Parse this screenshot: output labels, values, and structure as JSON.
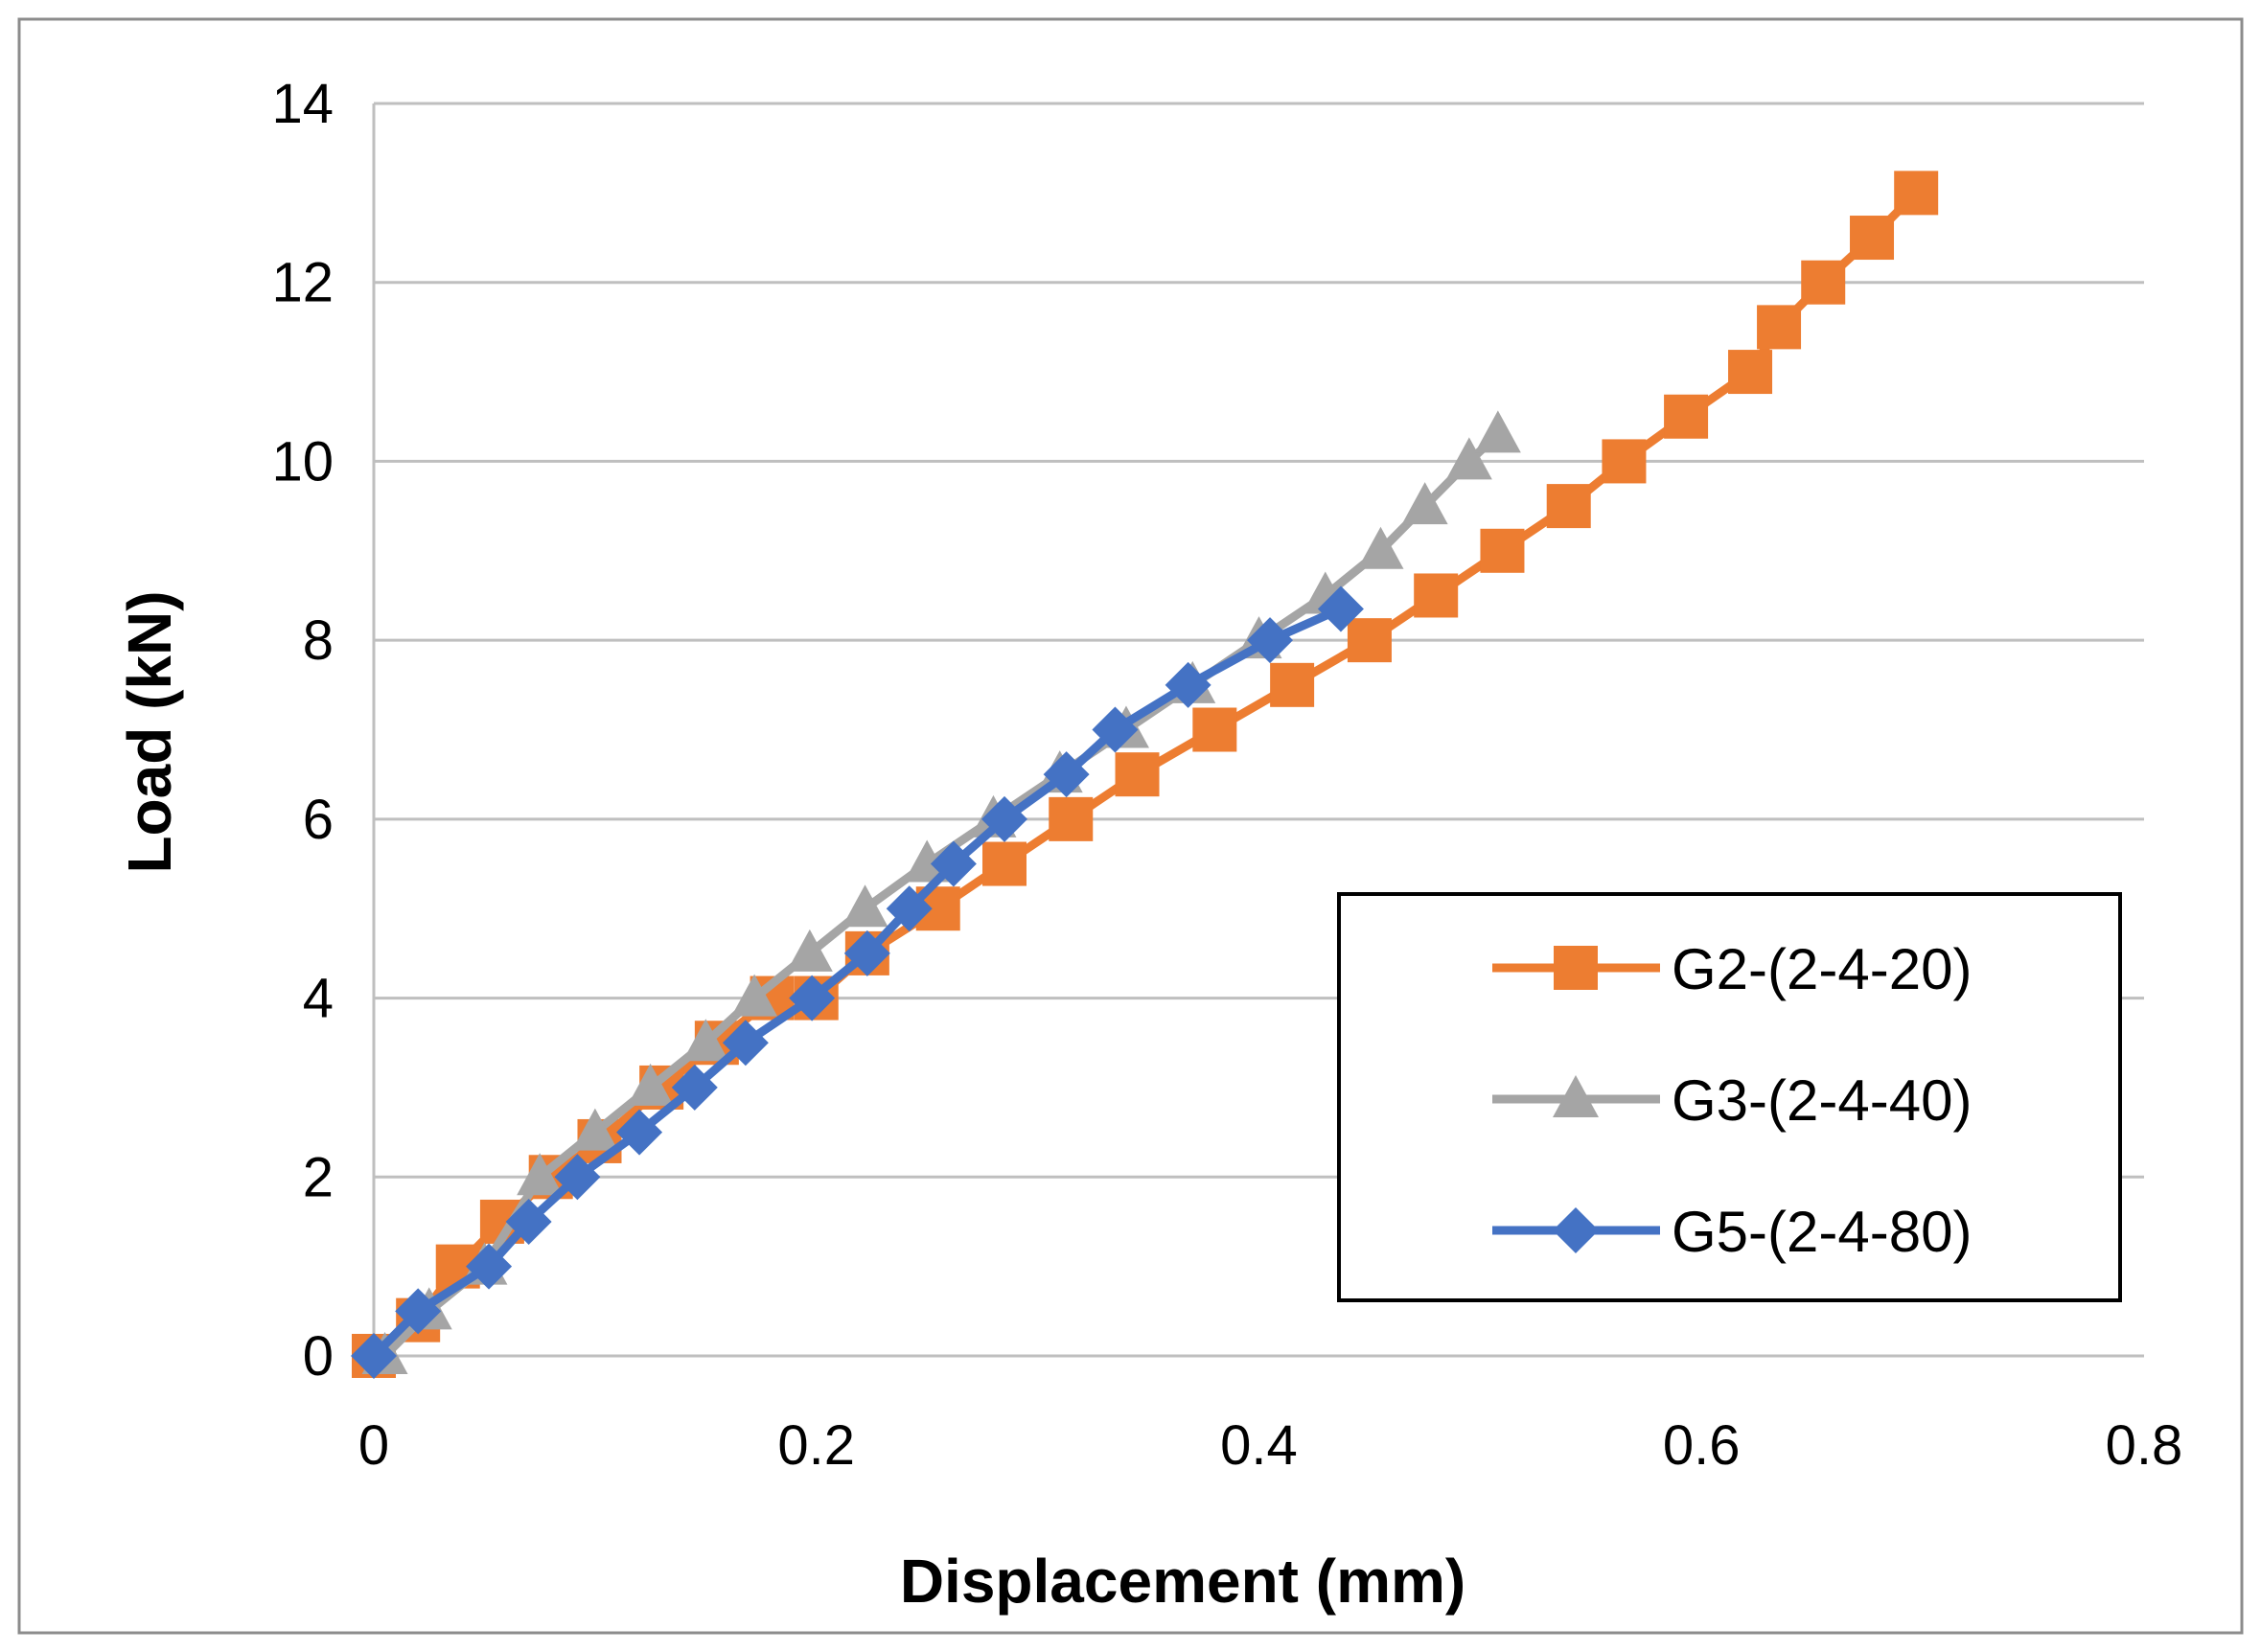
{
  "chart_data": {
    "type": "line",
    "xlabel": "Displacement (mm)",
    "ylabel": "Load (kN)",
    "xlim": [
      0,
      0.8
    ],
    "ylim": [
      0,
      14
    ],
    "x_ticks": [
      "0",
      "0.2",
      "0.4",
      "0.6",
      "0.8"
    ],
    "x_tick_values": [
      0,
      0.2,
      0.4,
      0.6,
      0.8
    ],
    "y_ticks": [
      "0",
      "2",
      "4",
      "6",
      "8",
      "10",
      "12",
      "14"
    ],
    "y_tick_values": [
      0,
      2,
      4,
      6,
      8,
      10,
      12,
      14
    ],
    "grid": "horizontal",
    "legend_position": "right",
    "series": [
      {
        "name": "G2-(2-4-20)",
        "color": "#ED7D31",
        "marker": "square",
        "x": [
          0.0,
          0.02,
          0.038,
          0.058,
          0.08,
          0.102,
          0.13,
          0.155,
          0.18,
          0.2,
          0.223,
          0.255,
          0.285,
          0.315,
          0.345,
          0.38,
          0.415,
          0.45,
          0.48,
          0.51,
          0.54,
          0.565,
          0.593,
          0.622,
          0.635,
          0.655,
          0.677,
          0.697
        ],
        "y": [
          0,
          0.4,
          1.0,
          1.5,
          2.0,
          2.4,
          3.0,
          3.5,
          4.0,
          4.0,
          4.5,
          5.0,
          5.5,
          6.0,
          6.5,
          7.0,
          7.5,
          8.0,
          8.5,
          9.0,
          9.5,
          10.0,
          10.5,
          11.0,
          11.5,
          12.0,
          12.5,
          13.0
        ]
      },
      {
        "name": "G3-(2-4-40)",
        "color": "#A5A5A5",
        "marker": "triangle",
        "x": [
          0.005,
          0.025,
          0.05,
          0.075,
          0.1,
          0.125,
          0.15,
          0.172,
          0.197,
          0.222,
          0.25,
          0.28,
          0.31,
          0.34,
          0.37,
          0.4,
          0.43,
          0.455,
          0.475,
          0.495,
          0.508
        ],
        "y": [
          0,
          0.5,
          1.0,
          2.0,
          2.5,
          3.0,
          3.5,
          4.0,
          4.5,
          5.0,
          5.5,
          6.0,
          6.5,
          7.0,
          7.5,
          8.0,
          8.5,
          9.0,
          9.5,
          10.0,
          10.3
        ]
      },
      {
        "name": "G5-(2-4-80)",
        "color": "#4472C4",
        "marker": "diamond",
        "x": [
          0.0,
          0.02,
          0.052,
          0.07,
          0.092,
          0.12,
          0.145,
          0.168,
          0.198,
          0.223,
          0.242,
          0.262,
          0.285,
          0.313,
          0.335,
          0.368,
          0.405,
          0.437
        ],
        "y": [
          0,
          0.5,
          1.0,
          1.5,
          2.0,
          2.5,
          3.0,
          3.5,
          4.0,
          4.5,
          5.0,
          5.5,
          6.0,
          6.5,
          7.0,
          7.5,
          8.0,
          8.35
        ]
      }
    ]
  }
}
